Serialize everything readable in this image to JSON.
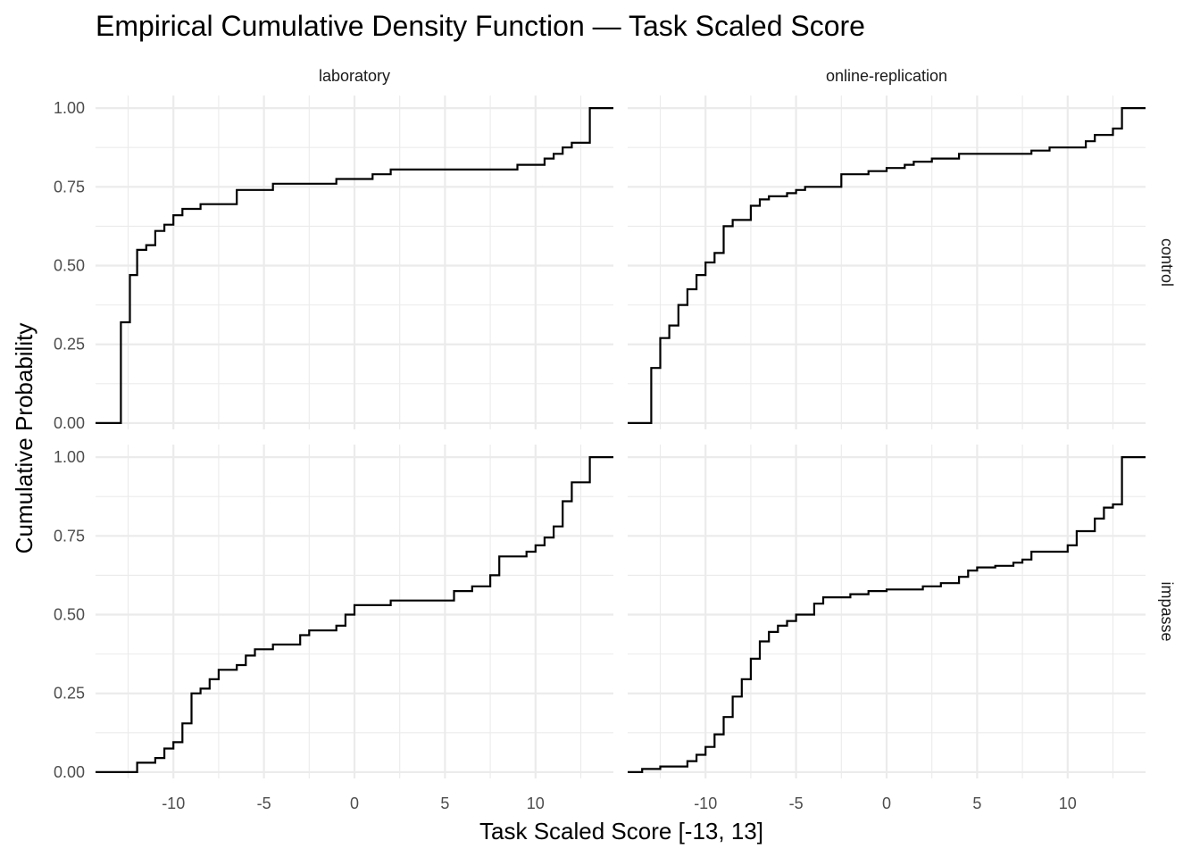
{
  "chart_data": {
    "type": "line",
    "subtype": "ecdf-step",
    "title": "Empirical Cumulative Density Function — Task Scaled Score",
    "xlabel": "Task Scaled Score [-13, 13]",
    "ylabel": "Cumulative Probability",
    "xlim": [
      -14.3,
      14.3
    ],
    "ylim": [
      -0.02,
      1.04
    ],
    "x_ticks": [
      -10,
      -5,
      0,
      5,
      10
    ],
    "x_tick_labels": [
      "-10",
      "-5",
      "0",
      "5",
      "10"
    ],
    "y_ticks": [
      0,
      0.25,
      0.5,
      0.75,
      1
    ],
    "y_tick_labels": [
      "0.00",
      "0.25",
      "0.50",
      "0.75",
      "1.00"
    ],
    "columns": [
      "laboratory",
      "online-replication"
    ],
    "rows": [
      "control",
      "impasse"
    ],
    "grid": true,
    "line_color": "#000000",
    "grid_color": "#ebebeb",
    "panels": [
      {
        "column": "laboratory",
        "row": "control",
        "steps": [
          [
            -14.3,
            0
          ],
          [
            -12.9,
            0.32
          ],
          [
            -12.4,
            0.47
          ],
          [
            -12.0,
            0.55
          ],
          [
            -11.5,
            0.565
          ],
          [
            -11.0,
            0.61
          ],
          [
            -10.5,
            0.63
          ],
          [
            -10.0,
            0.66
          ],
          [
            -9.5,
            0.68
          ],
          [
            -8.5,
            0.695
          ],
          [
            -6.5,
            0.74
          ],
          [
            -4.5,
            0.76
          ],
          [
            -1.0,
            0.775
          ],
          [
            1.0,
            0.79
          ],
          [
            2.0,
            0.805
          ],
          [
            9.0,
            0.82
          ],
          [
            10.5,
            0.84
          ],
          [
            11.0,
            0.855
          ],
          [
            11.5,
            0.875
          ],
          [
            12.0,
            0.89
          ],
          [
            13.0,
            1.0
          ],
          [
            14.3,
            1.0
          ]
        ]
      },
      {
        "column": "online-replication",
        "row": "control",
        "steps": [
          [
            -14.3,
            0
          ],
          [
            -13.0,
            0.175
          ],
          [
            -12.5,
            0.27
          ],
          [
            -12.0,
            0.31
          ],
          [
            -11.5,
            0.375
          ],
          [
            -11.0,
            0.425
          ],
          [
            -10.5,
            0.47
          ],
          [
            -10.0,
            0.51
          ],
          [
            -9.5,
            0.54
          ],
          [
            -9.0,
            0.625
          ],
          [
            -8.5,
            0.645
          ],
          [
            -7.5,
            0.69
          ],
          [
            -7.0,
            0.71
          ],
          [
            -6.5,
            0.72
          ],
          [
            -5.5,
            0.73
          ],
          [
            -5.0,
            0.74
          ],
          [
            -4.5,
            0.75
          ],
          [
            -2.5,
            0.79
          ],
          [
            -1.0,
            0.8
          ],
          [
            0,
            0.81
          ],
          [
            1.0,
            0.82
          ],
          [
            1.5,
            0.83
          ],
          [
            2.5,
            0.84
          ],
          [
            4.0,
            0.855
          ],
          [
            8.0,
            0.865
          ],
          [
            9.0,
            0.875
          ],
          [
            11.0,
            0.895
          ],
          [
            11.5,
            0.915
          ],
          [
            12.5,
            0.935
          ],
          [
            13.0,
            1.0
          ],
          [
            14.3,
            1.0
          ]
        ]
      },
      {
        "column": "laboratory",
        "row": "impasse",
        "steps": [
          [
            -14.3,
            0
          ],
          [
            -12.0,
            0.03
          ],
          [
            -11.0,
            0.045
          ],
          [
            -10.5,
            0.075
          ],
          [
            -10.0,
            0.095
          ],
          [
            -9.5,
            0.155
          ],
          [
            -9.0,
            0.25
          ],
          [
            -8.5,
            0.265
          ],
          [
            -8.0,
            0.295
          ],
          [
            -7.5,
            0.325
          ],
          [
            -6.5,
            0.34
          ],
          [
            -6.0,
            0.37
          ],
          [
            -5.5,
            0.39
          ],
          [
            -4.5,
            0.405
          ],
          [
            -3.0,
            0.435
          ],
          [
            -2.5,
            0.45
          ],
          [
            -1.0,
            0.465
          ],
          [
            -0.5,
            0.5
          ],
          [
            0,
            0.53
          ],
          [
            2.0,
            0.545
          ],
          [
            5.5,
            0.575
          ],
          [
            6.5,
            0.59
          ],
          [
            7.5,
            0.625
          ],
          [
            8.0,
            0.685
          ],
          [
            9.5,
            0.7
          ],
          [
            10.0,
            0.72
          ],
          [
            10.5,
            0.745
          ],
          [
            11.0,
            0.78
          ],
          [
            11.5,
            0.86
          ],
          [
            12.0,
            0.92
          ],
          [
            13.0,
            1.0
          ],
          [
            14.3,
            1.0
          ]
        ]
      },
      {
        "column": "online-replication",
        "row": "impasse",
        "steps": [
          [
            -14.3,
            0
          ],
          [
            -13.5,
            0.01
          ],
          [
            -12.5,
            0.018
          ],
          [
            -11.0,
            0.035
          ],
          [
            -10.5,
            0.055
          ],
          [
            -10.0,
            0.08
          ],
          [
            -9.5,
            0.12
          ],
          [
            -9.0,
            0.175
          ],
          [
            -8.5,
            0.24
          ],
          [
            -8.0,
            0.295
          ],
          [
            -7.5,
            0.36
          ],
          [
            -7.0,
            0.415
          ],
          [
            -6.5,
            0.445
          ],
          [
            -6.0,
            0.465
          ],
          [
            -5.5,
            0.48
          ],
          [
            -5.0,
            0.5
          ],
          [
            -4.0,
            0.535
          ],
          [
            -3.5,
            0.555
          ],
          [
            -2.0,
            0.565
          ],
          [
            -1.0,
            0.575
          ],
          [
            0,
            0.58
          ],
          [
            2.0,
            0.59
          ],
          [
            3.0,
            0.6
          ],
          [
            4.0,
            0.62
          ],
          [
            4.5,
            0.64
          ],
          [
            5.0,
            0.65
          ],
          [
            6.0,
            0.655
          ],
          [
            7.0,
            0.665
          ],
          [
            7.5,
            0.675
          ],
          [
            8.0,
            0.7
          ],
          [
            10.0,
            0.72
          ],
          [
            10.5,
            0.765
          ],
          [
            11.5,
            0.805
          ],
          [
            12.0,
            0.84
          ],
          [
            12.5,
            0.85
          ],
          [
            13.0,
            0.875
          ],
          [
            13.0,
            1.0
          ],
          [
            14.3,
            1.0
          ]
        ]
      }
    ]
  }
}
